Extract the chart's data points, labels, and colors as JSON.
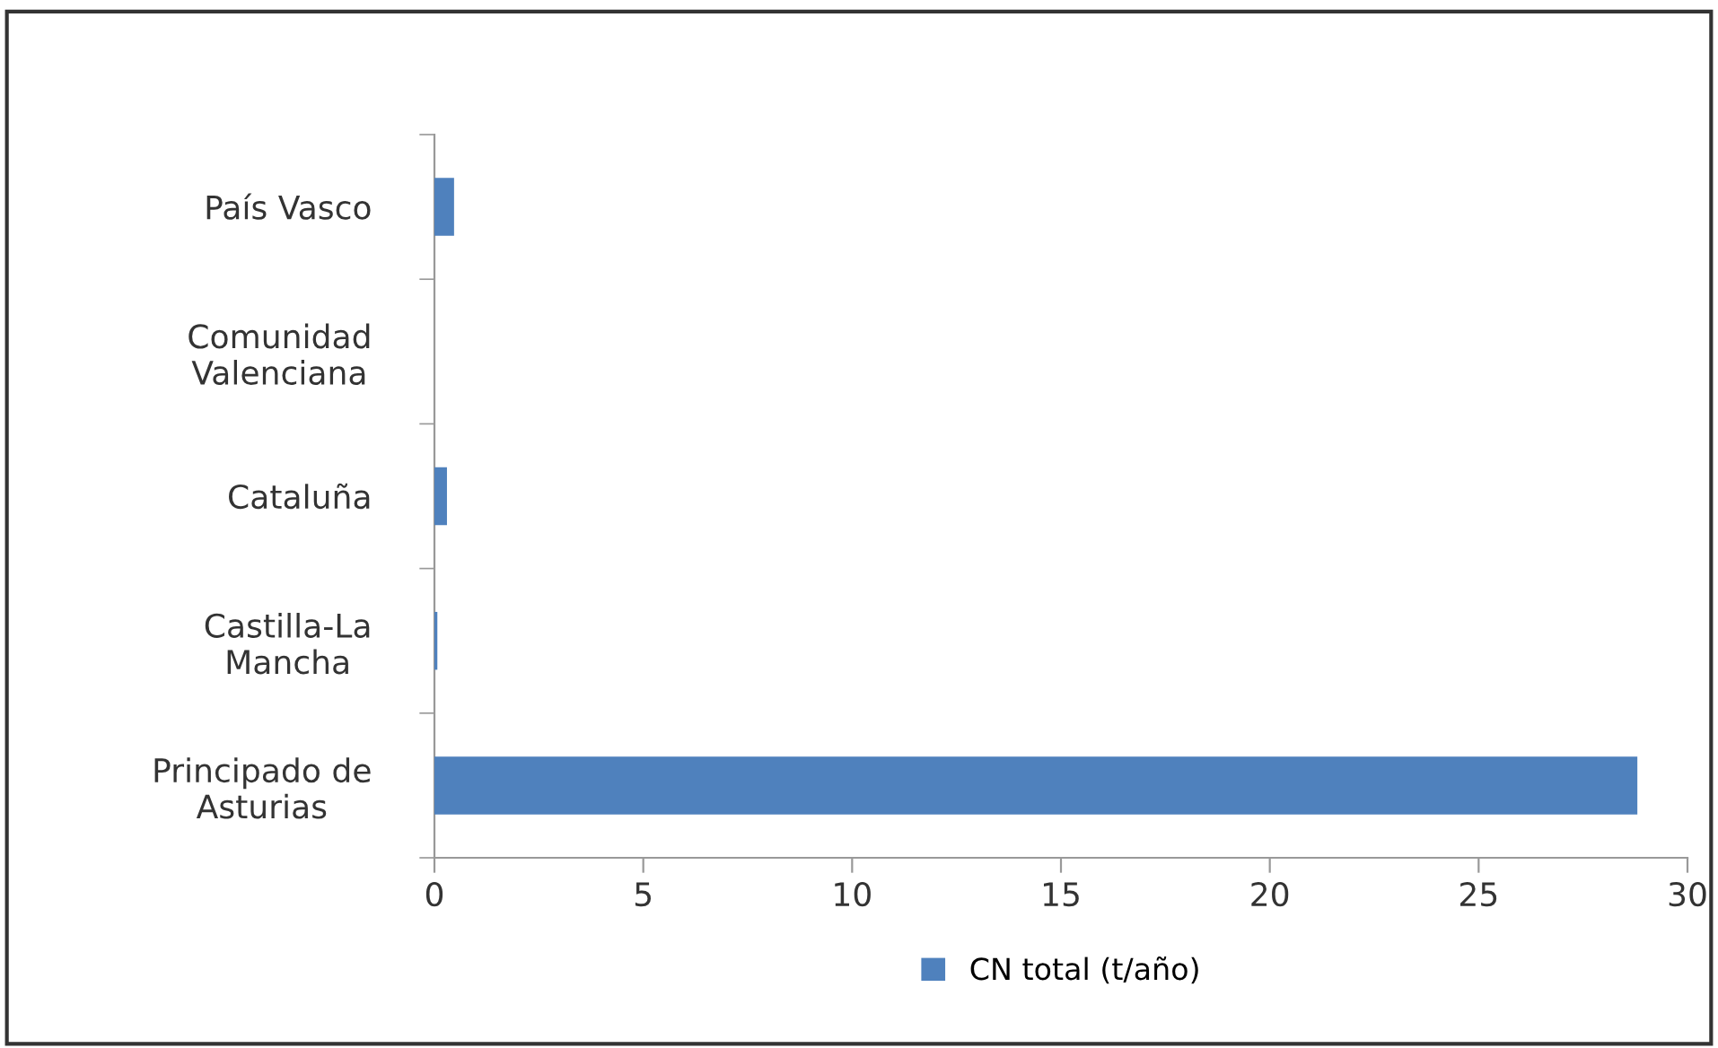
{
  "chart_data": {
    "type": "bar",
    "orientation": "horizontal",
    "categories": [
      "País Vasco",
      "Comunidad\nValenciana",
      "Cataluña",
      "Castilla-La\nMancha",
      "Principado de\nAsturias"
    ],
    "series": [
      {
        "name": "CN total (t/año)",
        "color": "#4f81bd",
        "values": [
          0.47,
          0,
          0.3,
          0.07,
          28.8
        ]
      }
    ],
    "xlim": [
      0,
      30
    ],
    "xticks": [
      0,
      5,
      10,
      15,
      20,
      25,
      30
    ],
    "grid": false,
    "legend": "bottom"
  }
}
